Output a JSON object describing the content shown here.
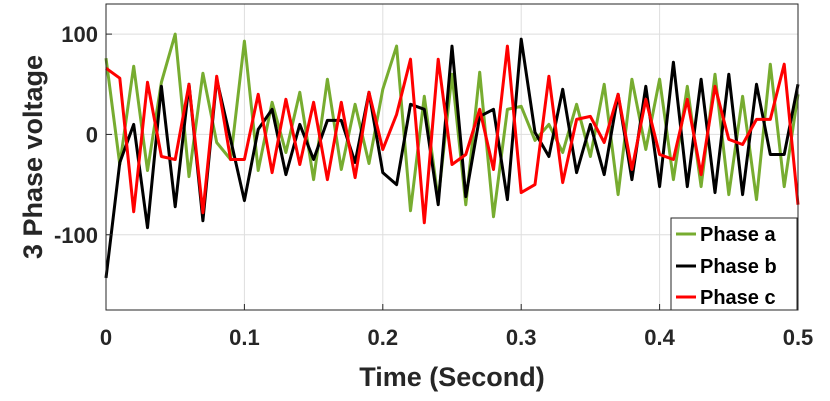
{
  "chart_data": {
    "type": "line",
    "xlabel": "Time (Second)",
    "ylabel": "3 Phase voltage",
    "xlim": [
      0,
      0.5
    ],
    "ylim": [
      -175,
      130
    ],
    "xticks": [
      "0",
      "0.1",
      "0.2",
      "0.3",
      "0.4",
      "0.5"
    ],
    "yticks": [
      "100",
      "0",
      "-100"
    ],
    "grid": true,
    "legend_position": "bottom-right",
    "series": [
      {
        "name": "Phase a",
        "color": "#77AC30",
        "x": [
          0,
          0.01,
          0.02,
          0.03,
          0.04,
          0.05,
          0.06,
          0.07,
          0.08,
          0.09,
          0.1,
          0.11,
          0.12,
          0.13,
          0.14,
          0.15,
          0.16,
          0.17,
          0.18,
          0.19,
          0.2,
          0.21,
          0.22,
          0.23,
          0.24,
          0.25,
          0.26,
          0.27,
          0.28,
          0.29,
          0.3,
          0.31,
          0.32,
          0.33,
          0.34,
          0.35,
          0.36,
          0.37,
          0.38,
          0.39,
          0.4,
          0.41,
          0.42,
          0.43,
          0.44,
          0.45,
          0.46,
          0.47,
          0.48,
          0.49,
          0.5
        ],
        "y": [
          76,
          -30,
          68,
          -36,
          52,
          100,
          -42,
          61,
          -8,
          -25,
          93,
          -36,
          32,
          -18,
          42,
          -45,
          55,
          -35,
          30,
          -29,
          45,
          88,
          -76,
          38,
          -65,
          60,
          -70,
          62,
          -82,
          25,
          28,
          -6,
          10,
          -18,
          30,
          -22,
          50,
          -60,
          55,
          -15,
          55,
          -45,
          48,
          -52,
          60,
          -60,
          38,
          -65,
          70,
          -52,
          40
        ]
      },
      {
        "name": "Phase b",
        "color": "#000000",
        "x": [
          0,
          0.01,
          0.02,
          0.03,
          0.04,
          0.05,
          0.06,
          0.07,
          0.08,
          0.09,
          0.1,
          0.11,
          0.12,
          0.13,
          0.14,
          0.15,
          0.16,
          0.17,
          0.18,
          0.19,
          0.2,
          0.21,
          0.22,
          0.23,
          0.24,
          0.25,
          0.26,
          0.27,
          0.28,
          0.29,
          0.3,
          0.31,
          0.32,
          0.33,
          0.34,
          0.35,
          0.36,
          0.37,
          0.38,
          0.39,
          0.4,
          0.41,
          0.42,
          0.43,
          0.44,
          0.45,
          0.46,
          0.47,
          0.48,
          0.49,
          0.5
        ],
        "y": [
          -143,
          -28,
          10,
          -93,
          48,
          -72,
          50,
          -86,
          55,
          -5,
          -66,
          5,
          25,
          -40,
          10,
          -25,
          14,
          14,
          -28,
          42,
          -38,
          -50,
          30,
          25,
          -70,
          88,
          -62,
          18,
          25,
          -65,
          95,
          2,
          -22,
          45,
          -38,
          10,
          -40,
          40,
          -45,
          48,
          -52,
          72,
          -52,
          55,
          -58,
          60,
          -60,
          50,
          -20,
          -20,
          50
        ]
      },
      {
        "name": "Phase c",
        "color": "#FF0000",
        "x": [
          0,
          0.01,
          0.02,
          0.03,
          0.04,
          0.05,
          0.06,
          0.07,
          0.08,
          0.09,
          0.1,
          0.11,
          0.12,
          0.13,
          0.14,
          0.15,
          0.16,
          0.17,
          0.18,
          0.19,
          0.2,
          0.21,
          0.22,
          0.23,
          0.24,
          0.25,
          0.26,
          0.27,
          0.28,
          0.29,
          0.3,
          0.31,
          0.32,
          0.33,
          0.34,
          0.35,
          0.36,
          0.37,
          0.38,
          0.39,
          0.4,
          0.41,
          0.42,
          0.43,
          0.44,
          0.45,
          0.46,
          0.47,
          0.48,
          0.49,
          0.5
        ],
        "y": [
          66,
          56,
          -77,
          52,
          -22,
          -25,
          50,
          -78,
          58,
          -25,
          -25,
          40,
          -38,
          35,
          -30,
          32,
          -45,
          32,
          -43,
          42,
          -15,
          20,
          75,
          -88,
          75,
          -30,
          -20,
          25,
          -35,
          88,
          -58,
          -50,
          58,
          -48,
          15,
          18,
          -8,
          40,
          -35,
          35,
          -20,
          -25,
          35,
          -40,
          48,
          -5,
          -10,
          15,
          15,
          70,
          -70
        ]
      }
    ]
  }
}
